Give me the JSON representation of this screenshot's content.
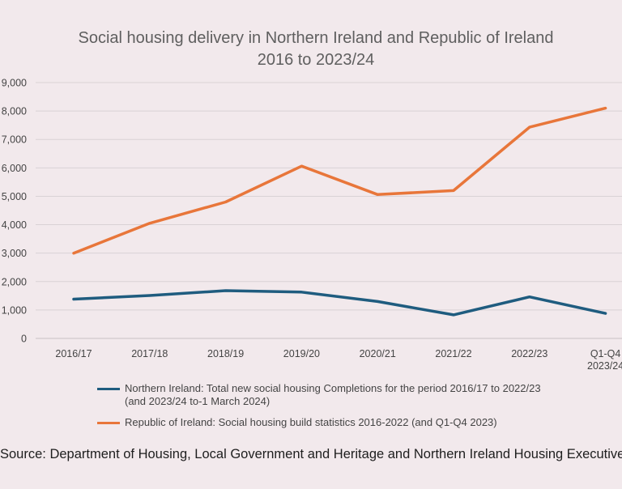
{
  "chart_data": {
    "type": "line",
    "title_line1": "Social housing delivery in Northern Ireland and Republic of Ireland",
    "title_line2": "2016 to 2023/24",
    "categories": [
      [
        "2016/17"
      ],
      [
        "2017/18"
      ],
      [
        "2018/19"
      ],
      [
        "2019/20"
      ],
      [
        "2020/21"
      ],
      [
        "2021/22"
      ],
      [
        "2022/23"
      ],
      [
        "Q1-Q4",
        "2023/24"
      ]
    ],
    "y_ticks": [
      "0",
      "1,000",
      "2,000",
      "3,000",
      "4,000",
      "5,000",
      "6,000",
      "7,000",
      "8,000",
      "9,000"
    ],
    "ylim": [
      0,
      9000
    ],
    "grid": true,
    "legend_position": "bottom",
    "series": [
      {
        "name": "Northern Ireland: Total new social housing Completions for the period 2016/17 to 2022/23 (and 2023/24 to-1 March 2024)",
        "color": "#1f5c7f",
        "values": [
          1380,
          1510,
          1680,
          1630,
          1300,
          830,
          1460,
          880
        ]
      },
      {
        "name": "Republic of Ireland: Social housing build statistics 2016-2022 (and Q1-Q4 2023)",
        "color": "#e8763a",
        "values": [
          3000,
          4050,
          4800,
          6060,
          5060,
          5200,
          7430,
          8100
        ]
      }
    ],
    "source": "Source: Department of Housing, Local Government and Heritage and Northern Ireland Housing Executive"
  }
}
